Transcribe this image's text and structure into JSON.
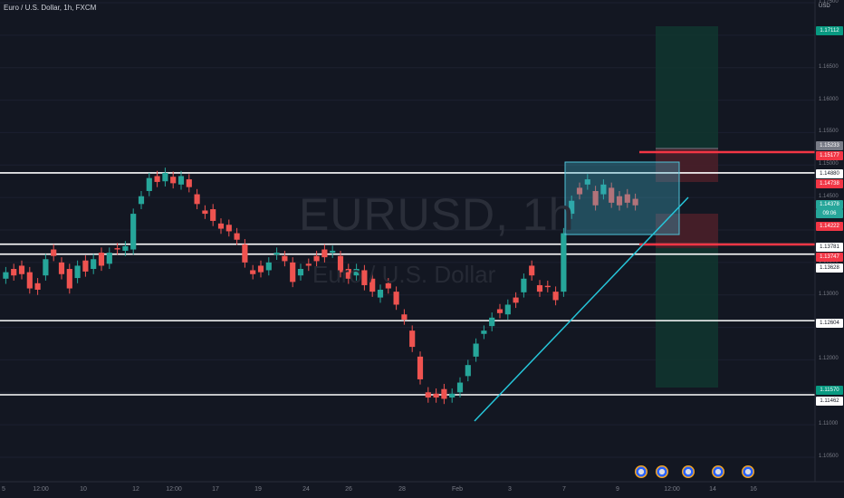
{
  "header": {
    "title": "Euro / U.S. Dollar, 1h, FXCM",
    "currency": "USD"
  },
  "watermark": {
    "symbol": "EURUSD, 1h",
    "name": "Euro / U.S. Dollar"
  },
  "price_axis": [
    "1.17500",
    "1.17000",
    "1.16500",
    "1.16000",
    "1.15500",
    "1.15000",
    "1.14500",
    "1.14000",
    "1.13500",
    "1.13000",
    "1.12500",
    "1.12000",
    "1.11500",
    "1.11000",
    "1.10500"
  ],
  "badges": [
    {
      "text": "1.17112",
      "bg": "#089981",
      "fg": "#ffffff"
    },
    {
      "text": "1.15233",
      "bg": "#787b86",
      "fg": "#ffffff"
    },
    {
      "text": "1.15177",
      "bg": "#f23645",
      "fg": "#ffffff"
    },
    {
      "text": "1.14880",
      "bg": "#ffffff",
      "fg": "#131722"
    },
    {
      "text": "1.14738",
      "bg": "#f23645",
      "fg": "#ffffff"
    },
    {
      "text": "1.14378",
      "bg": "#26a69a",
      "fg": "#ffffff"
    },
    {
      "text": "09:06",
      "bg": "#26a69a",
      "fg": "#ffffff"
    },
    {
      "text": "1.14222",
      "bg": "#f23645",
      "fg": "#ffffff"
    },
    {
      "text": "1.13781",
      "bg": "#ffffff",
      "fg": "#131722"
    },
    {
      "text": "1.13747",
      "bg": "#f23645",
      "fg": "#ffffff"
    },
    {
      "text": "1.13628",
      "bg": "#ffffff",
      "fg": "#131722"
    },
    {
      "text": "1.12604",
      "bg": "#ffffff",
      "fg": "#131722"
    },
    {
      "text": "1.11570",
      "bg": "#089981",
      "fg": "#ffffff"
    },
    {
      "text": "1.11462",
      "bg": "#ffffff",
      "fg": "#131722"
    }
  ],
  "time_axis": [
    "5",
    "12:00",
    "10",
    "12",
    "12:00",
    "17",
    "19",
    "24",
    "26",
    "28",
    "Feb",
    "3",
    "7",
    "9",
    "12:00",
    "14",
    "16"
  ],
  "chart_data": {
    "type": "line",
    "symbol": "EURUSD",
    "interval": "1h",
    "horizontal_levels": [
      1.1488,
      1.13781,
      1.13628,
      1.12604,
      1.11462
    ],
    "red_levels": [
      1.15177,
      1.13747
    ],
    "trendline": {
      "from": [
        "Jan 28",
        1.1105
      ],
      "to": [
        "Feb 8",
        1.1455
      ]
    },
    "consolidation_box": {
      "high": 1.1488,
      "low": 1.1422
    },
    "position": {
      "target": 1.17112,
      "entry": 1.15233,
      "stop": 1.15177,
      "stop_zone_low": 1.14738,
      "alt_entry": 1.14222,
      "alt_target": 1.1157
    },
    "last_price": 1.14378,
    "price_path": [
      [
        1.1325,
        1.1335
      ],
      [
        1.134,
        1.133
      ],
      [
        1.1345,
        1.1332
      ],
      [
        1.1335,
        1.131
      ],
      [
        1.1318,
        1.1308
      ],
      [
        1.133,
        1.1355
      ],
      [
        1.137,
        1.136
      ],
      [
        1.135,
        1.1332
      ],
      [
        1.134,
        1.131
      ],
      [
        1.1326,
        1.1345
      ],
      [
        1.1353,
        1.1336
      ],
      [
        1.134,
        1.1355
      ],
      [
        1.1365,
        1.1345
      ],
      [
        1.1348,
        1.1365
      ],
      [
        1.1372,
        1.137
      ],
      [
        1.1368,
        1.1375
      ],
      [
        1.137,
        1.1425
      ],
      [
        1.144,
        1.1452
      ],
      [
        1.146,
        1.148
      ],
      [
        1.1483,
        1.1474
      ],
      [
        1.1475,
        1.1488
      ],
      [
        1.1482,
        1.1472
      ],
      [
        1.147,
        1.1483
      ],
      [
        1.1478,
        1.1466
      ],
      [
        1.1455,
        1.144
      ],
      [
        1.143,
        1.1425
      ],
      [
        1.1432,
        1.1414
      ],
      [
        1.141,
        1.1402
      ],
      [
        1.1408,
        1.1398
      ],
      [
        1.1395,
        1.1385
      ],
      [
        1.1378,
        1.135
      ],
      [
        1.1338,
        1.1332
      ],
      [
        1.1345,
        1.1335
      ],
      [
        1.1338,
        1.135
      ],
      [
        1.1362,
        1.1365
      ],
      [
        1.136,
        1.1352
      ],
      [
        1.135,
        1.132
      ],
      [
        1.133,
        1.134
      ],
      [
        1.1348,
        1.1345
      ],
      [
        1.136,
        1.1352
      ],
      [
        1.137,
        1.1358
      ],
      [
        1.1365,
        1.1368
      ],
      [
        1.136,
        1.1335
      ],
      [
        1.134,
        1.1325
      ],
      [
        1.133,
        1.134
      ],
      [
        1.1338,
        1.1315
      ],
      [
        1.1325,
        1.1305
      ],
      [
        1.1296,
        1.1308
      ],
      [
        1.1318,
        1.131
      ],
      [
        1.1305,
        1.1285
      ],
      [
        1.127,
        1.1262
      ],
      [
        1.1245,
        1.122
      ],
      [
        1.1205,
        1.117
      ],
      [
        1.115,
        1.1142
      ],
      [
        1.1148,
        1.1142
      ],
      [
        1.1155,
        1.114
      ],
      [
        1.1142,
        1.1148
      ],
      [
        1.115,
        1.1165
      ],
      [
        1.1175,
        1.1192
      ],
      [
        1.1205,
        1.1225
      ],
      [
        1.124,
        1.1245
      ],
      [
        1.1252,
        1.1265
      ],
      [
        1.1278,
        1.1272
      ],
      [
        1.127,
        1.1285
      ],
      [
        1.1296,
        1.1288
      ],
      [
        1.1304,
        1.1325
      ],
      [
        1.1345,
        1.133
      ],
      [
        1.1315,
        1.1305
      ],
      [
        1.1314,
        1.1312
      ],
      [
        1.1305,
        1.1292
      ],
      [
        1.1305,
        1.1395
      ],
      [
        1.1425,
        1.1445
      ],
      [
        1.1465,
        1.1455
      ],
      [
        1.147,
        1.1478
      ],
      [
        1.146,
        1.1438
      ],
      [
        1.1455,
        1.147
      ],
      [
        1.1465,
        1.1442
      ],
      [
        1.1452,
        1.1438
      ],
      [
        1.1455,
        1.1442
      ],
      [
        1.1448,
        1.1438
      ]
    ]
  },
  "events": [
    "E",
    "E",
    "E",
    "E",
    "E"
  ]
}
